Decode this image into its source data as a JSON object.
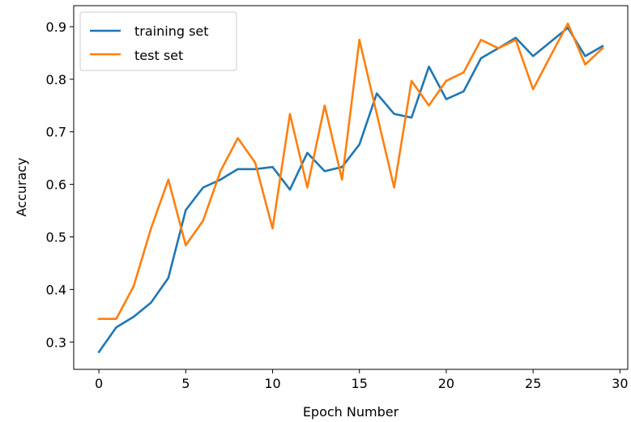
{
  "chart_data": {
    "type": "line",
    "xlabel": "Epoch Number",
    "ylabel": "Accuracy",
    "xlim": [
      -1.45,
      30.45
    ],
    "ylim": [
      0.248,
      0.94
    ],
    "xticks": [
      0,
      5,
      10,
      15,
      20,
      25,
      30
    ],
    "yticks": [
      0.3,
      0.4,
      0.5,
      0.6,
      0.7,
      0.8,
      0.9
    ],
    "xtick_labels": [
      "0",
      "5",
      "10",
      "15",
      "20",
      "25",
      "30"
    ],
    "ytick_labels": [
      "0.3",
      "0.4",
      "0.5",
      "0.6",
      "0.7",
      "0.8",
      "0.9"
    ],
    "grid": false,
    "legend_position": "top-left",
    "x": [
      0,
      1,
      2,
      3,
      4,
      5,
      6,
      7,
      8,
      9,
      10,
      11,
      12,
      13,
      14,
      15,
      16,
      17,
      18,
      19,
      20,
      21,
      22,
      23,
      24,
      25,
      26,
      27,
      28,
      29
    ],
    "series": [
      {
        "name": "training set",
        "color": "#1f77b4",
        "values": [
          0.281,
          0.328,
          0.348,
          0.375,
          0.422,
          0.551,
          0.594,
          0.609,
          0.629,
          0.629,
          0.633,
          0.59,
          0.66,
          0.625,
          0.633,
          0.676,
          0.773,
          0.734,
          0.727,
          0.824,
          0.762,
          0.777,
          0.84,
          0.859,
          0.879,
          0.844,
          0.871,
          0.898,
          0.844,
          0.863
        ]
      },
      {
        "name": "test set",
        "color": "#ff7f0e",
        "values": [
          0.344,
          0.344,
          0.406,
          0.516,
          0.609,
          0.484,
          0.531,
          0.625,
          0.688,
          0.641,
          0.516,
          0.734,
          0.594,
          0.75,
          0.609,
          0.875,
          0.734,
          0.594,
          0.797,
          0.75,
          0.797,
          0.813,
          0.875,
          0.859,
          0.875,
          0.781,
          0.844,
          0.906,
          0.828,
          0.859
        ]
      }
    ]
  }
}
